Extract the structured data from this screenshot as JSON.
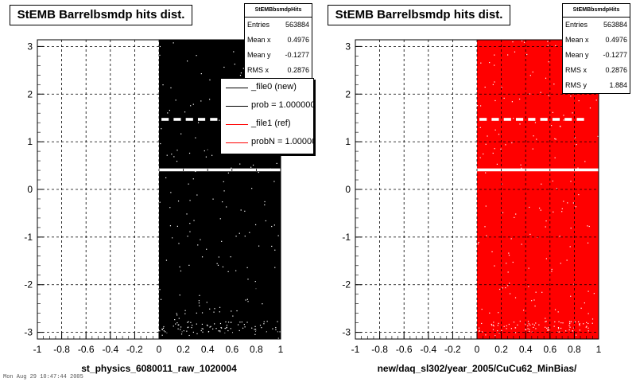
{
  "chart_data": [
    {
      "type": "scatter",
      "title": "StEMB Barrelbsmdp hits dist.",
      "xlabel": "st_physics_6080011_raw_1020004",
      "ylabel": "",
      "xlim": [
        -1,
        1
      ],
      "ylim": [
        -3.14,
        3.14
      ],
      "x_ticks": [
        "-1",
        "-0.8",
        "-0.6",
        "-0.4",
        "-0.2",
        "0",
        "0.2",
        "0.4",
        "0.6",
        "0.8",
        "1"
      ],
      "y_ticks": [
        "-3",
        "-2",
        "-1",
        "0",
        "1",
        "2",
        "3"
      ],
      "grid": true,
      "marker_color": "#000000",
      "filled_region": {
        "x": [
          0,
          1
        ],
        "y": [
          -3.14,
          3.14
        ]
      },
      "stats": {
        "name": "StEMBbsmdpHits",
        "rows": [
          {
            "label": "Entries",
            "value": "563884"
          },
          {
            "label": "Mean x",
            "value": "0.4976"
          },
          {
            "label": "Mean y",
            "value": "-0.1277"
          },
          {
            "label": "RMS x",
            "value": "0.2876"
          }
        ]
      },
      "legend": [
        {
          "label": "_file0 (new)",
          "color": "#000000"
        },
        {
          "label": "prob = 1.000000",
          "color": "#000000"
        },
        {
          "label": "_file1 (ref)",
          "color": "#ff0000"
        },
        {
          "label": "probN = 1.000000",
          "color": "#ff0000"
        }
      ]
    },
    {
      "type": "scatter",
      "title": "StEMB Barrelbsmdp hits dist.",
      "xlabel": "new/daq_sl302/year_2005/CuCu62_MinBias/",
      "ylabel": "",
      "xlim": [
        -1,
        1
      ],
      "ylim": [
        -3.14,
        3.14
      ],
      "x_ticks": [
        "-1",
        "-0.8",
        "-0.6",
        "-0.4",
        "-0.2",
        "0",
        "0.2",
        "0.4",
        "0.6",
        "0.8",
        "1"
      ],
      "y_ticks": [
        "-3",
        "-2",
        "-1",
        "0",
        "1",
        "2",
        "3"
      ],
      "grid": true,
      "marker_color": "#ff0000",
      "filled_region": {
        "x": [
          0,
          1
        ],
        "y": [
          -3.14,
          3.14
        ]
      },
      "stats": {
        "name": "StEMBbsmdpHits",
        "rows": [
          {
            "label": "Entries",
            "value": "563884"
          },
          {
            "label": "Mean x",
            "value": "0.4976"
          },
          {
            "label": "Mean y",
            "value": "-0.1277"
          },
          {
            "label": "RMS x",
            "value": "0.2876"
          },
          {
            "label": "RMS y",
            "value": "1.884"
          }
        ]
      }
    }
  ],
  "footer_text": "Mon Aug 29 10:47:44 2005"
}
